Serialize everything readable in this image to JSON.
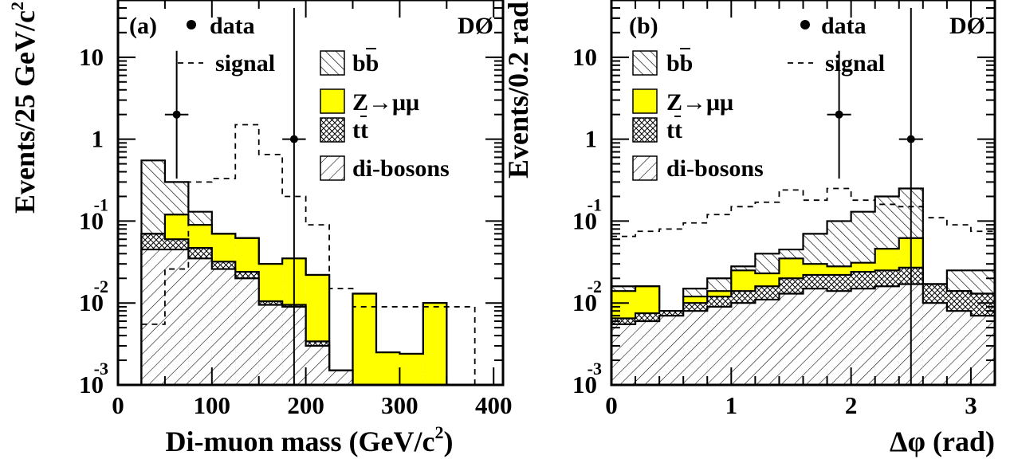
{
  "chart_data": [
    {
      "type": "histogram",
      "panel_label": "(a)",
      "experiment_label": "DØ",
      "xlabel_main": "Di-muon mass (GeV/c",
      "xlabel_sup": "2",
      "xlabel_end": ")",
      "ylabel_main": "Events/25 GeV/c",
      "ylabel_sup": "2",
      "y_scale": "log",
      "xlim": [
        0,
        410
      ],
      "ylim": [
        0.001,
        50
      ],
      "x_ticks": [
        {
          "value": 0,
          "label": "0"
        },
        {
          "value": 100,
          "label": "100"
        },
        {
          "value": 200,
          "label": "200"
        },
        {
          "value": 300,
          "label": "300"
        },
        {
          "value": 400,
          "label": "400"
        }
      ],
      "y_ticks": [
        {
          "value": 10,
          "base": "10",
          "exp": ""
        },
        {
          "value": 1,
          "base": "1",
          "exp": ""
        },
        {
          "value": 0.1,
          "base": "10",
          "exp": "-1"
        },
        {
          "value": 0.01,
          "base": "10",
          "exp": "-2"
        },
        {
          "value": 0.001,
          "base": "10",
          "exp": "-3"
        }
      ],
      "legend": {
        "data": "data",
        "signal": "signal",
        "bb": "bb",
        "zmumu_prefix": "Z",
        "zmumu_suffix": "μμ",
        "tt": "tt",
        "dibosons": "di-bosons"
      },
      "bins": [
        25,
        50,
        75,
        100,
        125,
        150,
        175,
        200,
        225,
        250,
        275,
        300,
        325,
        350
      ],
      "stack": {
        "dibosons": [
          0.045,
          0.045,
          0.035,
          0.026,
          0.02,
          0.0095,
          0.009,
          0.003,
          0.0015,
          0.0007,
          0.0005,
          0.0005,
          0.0005
        ],
        "tt": [
          0.07,
          0.06,
          0.047,
          0.032,
          0.024,
          0.0105,
          0.0095,
          0.0034,
          0.0015,
          0.0007,
          0.0005,
          0.0005,
          0.0005
        ],
        "zmumu": [
          0.07,
          0.12,
          0.09,
          0.07,
          0.062,
          0.03,
          0.035,
          0.022,
          0.0015,
          0.013,
          0.0025,
          0.0024,
          0.01
        ],
        "bb": [
          0.55,
          0.3,
          0.13,
          0.07,
          0.062,
          0.03,
          0.035,
          0.022,
          0.0015,
          0.013,
          0.0025,
          0.0024,
          0.01
        ]
      },
      "signal": {
        "edges": [
          25,
          50,
          75,
          100,
          125,
          150,
          175,
          200,
          225,
          250,
          275,
          300,
          325,
          350,
          375,
          380
        ],
        "values": [
          0.0055,
          0.026,
          0.3,
          0.33,
          1.5,
          0.65,
          0.2,
          0.09,
          0.015,
          0.009,
          0.009,
          0.009,
          0.009,
          0.009,
          0.009
        ]
      },
      "data_points": [
        {
          "x": 62.5,
          "y": 2.0,
          "xerr": 12.5,
          "ylow": 0.33,
          "yhigh": 12.0
        },
        {
          "x": 187.5,
          "y": 1.0,
          "xerr": 12.5,
          "ylow": 0.0008,
          "yhigh": 40.0
        }
      ]
    },
    {
      "type": "histogram",
      "panel_label": "(b)",
      "experiment_label": "DØ",
      "xlabel_main": "Δφ (rad)",
      "ylabel_main": "Events/0.2 rad",
      "y_scale": "log",
      "xlim": [
        0,
        3.2
      ],
      "ylim": [
        0.001,
        50
      ],
      "x_ticks": [
        {
          "value": 0,
          "label": "0"
        },
        {
          "value": 1,
          "label": "1"
        },
        {
          "value": 2,
          "label": "2"
        },
        {
          "value": 3,
          "label": "3"
        }
      ],
      "y_ticks": [
        {
          "value": 10,
          "base": "10",
          "exp": ""
        },
        {
          "value": 1,
          "base": "1",
          "exp": ""
        },
        {
          "value": 0.1,
          "base": "10",
          "exp": "-1"
        },
        {
          "value": 0.01,
          "base": "10",
          "exp": "-2"
        },
        {
          "value": 0.001,
          "base": "10",
          "exp": "-3"
        }
      ],
      "legend": {
        "data": "data",
        "signal": "signal",
        "bb": "bb",
        "zmumu_prefix": "Z",
        "zmumu_suffix": "μμ",
        "tt": "tt",
        "dibosons": "di-bosons"
      },
      "bins": [
        0,
        0.2,
        0.4,
        0.6,
        0.8,
        1.0,
        1.2,
        1.4,
        1.6,
        1.8,
        2.0,
        2.2,
        2.4,
        2.6,
        2.8,
        3.0,
        3.2
      ],
      "stack": {
        "dibosons": [
          0.0055,
          0.006,
          0.007,
          0.008,
          0.009,
          0.01,
          0.011,
          0.013,
          0.015,
          0.014,
          0.015,
          0.016,
          0.017,
          0.01,
          0.008,
          0.007
        ],
        "tt": [
          0.0065,
          0.0075,
          0.008,
          0.01,
          0.012,
          0.014,
          0.016,
          0.02,
          0.022,
          0.022,
          0.024,
          0.025,
          0.027,
          0.017,
          0.014,
          0.013
        ],
        "zmumu": [
          0.014,
          0.016,
          0.008,
          0.012,
          0.014,
          0.025,
          0.023,
          0.035,
          0.03,
          0.028,
          0.031,
          0.046,
          0.062,
          0.017,
          0.014,
          0.013
        ],
        "bb": [
          0.016,
          0.016,
          0.008,
          0.015,
          0.02,
          0.028,
          0.04,
          0.045,
          0.07,
          0.1,
          0.13,
          0.2,
          0.25,
          0.017,
          0.025,
          0.025
        ]
      },
      "signal": {
        "edges": [
          0,
          0.2,
          0.4,
          0.6,
          0.8,
          1.0,
          1.2,
          1.4,
          1.6,
          1.8,
          2.0,
          2.2,
          2.4,
          2.6,
          2.8,
          3.0,
          3.2
        ],
        "values": [
          0.065,
          0.075,
          0.08,
          0.095,
          0.12,
          0.15,
          0.17,
          0.24,
          0.18,
          0.25,
          0.18,
          0.16,
          0.15,
          0.11,
          0.09,
          0.075
        ]
      },
      "data_points": [
        {
          "x": 1.9,
          "y": 2.0,
          "xerr": 0.1,
          "ylow": 0.33,
          "yhigh": 12.0
        },
        {
          "x": 2.5,
          "y": 1.0,
          "xerr": 0.1,
          "ylow": 0.0008,
          "yhigh": 40.0
        }
      ]
    }
  ]
}
